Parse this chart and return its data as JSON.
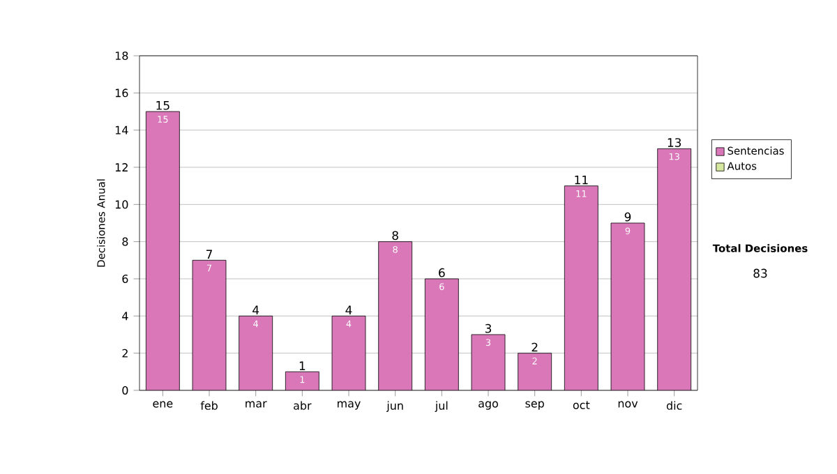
{
  "chart_data": {
    "type": "bar",
    "ylabel": "Decisiones Anual",
    "categories": [
      "ene",
      "feb",
      "mar",
      "abr",
      "may",
      "jun",
      "jul",
      "ago",
      "sep",
      "oct",
      "nov",
      "dic"
    ],
    "series": [
      {
        "name": "Sentencias",
        "color": "#d977b9",
        "values": [
          15,
          7,
          4,
          1,
          4,
          8,
          6,
          3,
          2,
          11,
          9,
          13
        ],
        "value_labels": [
          "15",
          "7",
          "4",
          "1",
          "4",
          "8",
          "6",
          "3",
          "2",
          "11",
          "9",
          "13"
        ]
      },
      {
        "name": "Autos",
        "color": "#d6e8a0",
        "values": [
          0,
          0,
          0,
          0,
          0,
          0,
          0,
          0,
          0,
          0,
          0,
          0
        ]
      }
    ],
    "stacked": true,
    "totals": [
      "15",
      "7",
      "4",
      "1",
      "4",
      "8",
      "6",
      "3",
      "2",
      "11",
      "9",
      "13"
    ],
    "ylim": [
      0,
      18
    ],
    "yticks": [
      0,
      2,
      4,
      6,
      8,
      10,
      12,
      14,
      16,
      18
    ],
    "grid": "y",
    "legend": "right",
    "annotations": [
      "Total Decisiones",
      "83"
    ]
  }
}
